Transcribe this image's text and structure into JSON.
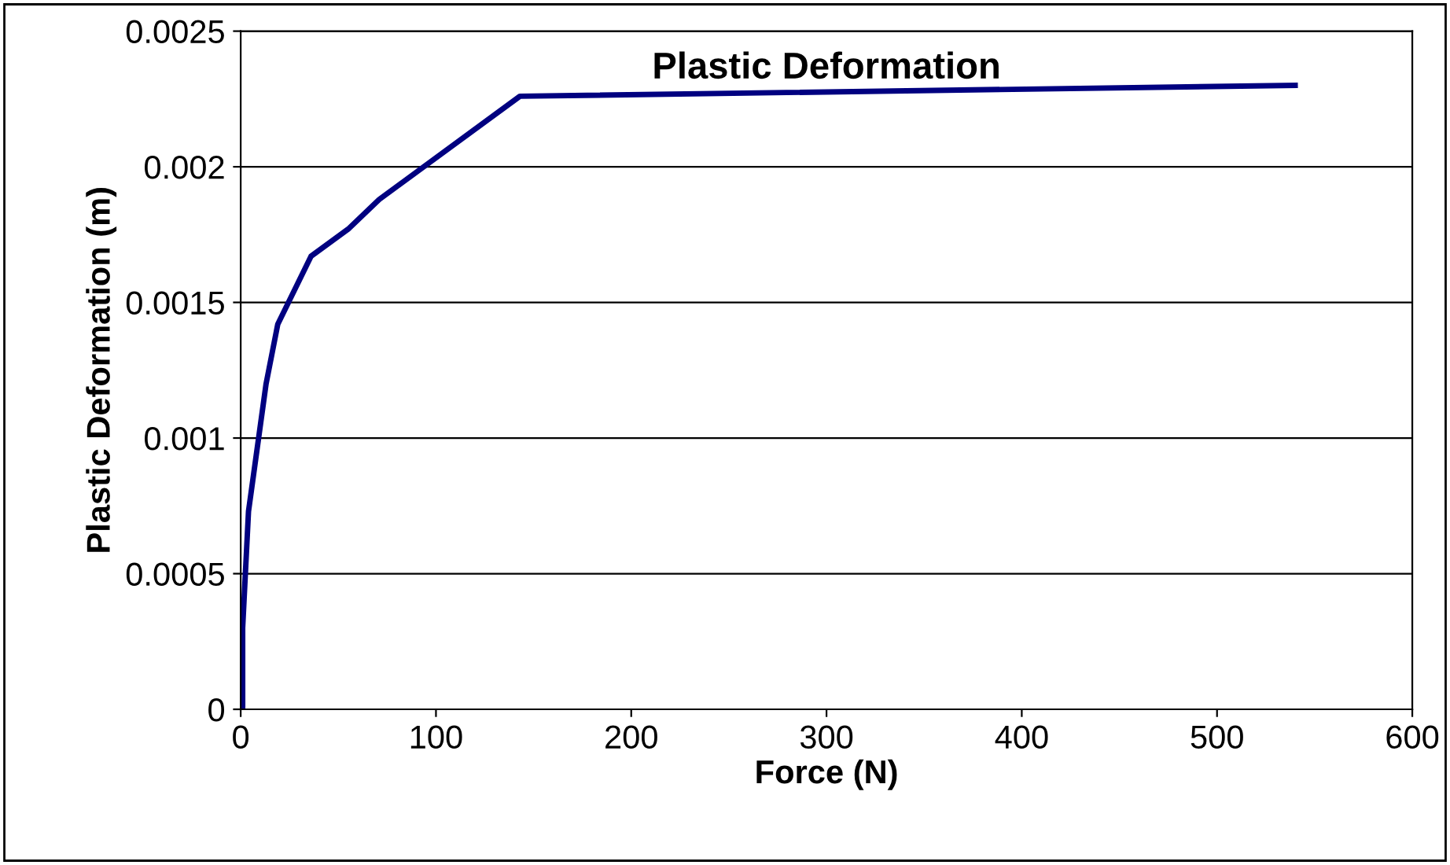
{
  "chart_data": {
    "type": "line",
    "title": "Plastic Deformation",
    "xlabel": "Force (N)",
    "ylabel": "Plastic Deformation (m)",
    "x": [
      1,
      1,
      4,
      13,
      19,
      36,
      55,
      71,
      143,
      540
    ],
    "series": [
      {
        "color": "#000080",
        "values": [
          0,
          0.0003,
          0.00073,
          0.0012,
          0.00142,
          0.00167,
          0.00177,
          0.00188,
          0.00226,
          0.0023
        ]
      }
    ],
    "xlim": [
      0,
      600
    ],
    "xticks": [
      0,
      100,
      200,
      300,
      400,
      500,
      600
    ],
    "ylim": [
      0,
      0.0025
    ],
    "yticks": [
      {
        "value": 0,
        "label": "0"
      },
      {
        "value": 0.0005,
        "label": "0.0005"
      },
      {
        "value": 0.001,
        "label": "0.001"
      },
      {
        "value": 0.0015,
        "label": "0.0015"
      },
      {
        "value": 0.002,
        "label": "0.002"
      },
      {
        "value": 0.0025,
        "label": "0.0025"
      }
    ],
    "grid": "y",
    "marker": "none",
    "line_style": "solid"
  }
}
